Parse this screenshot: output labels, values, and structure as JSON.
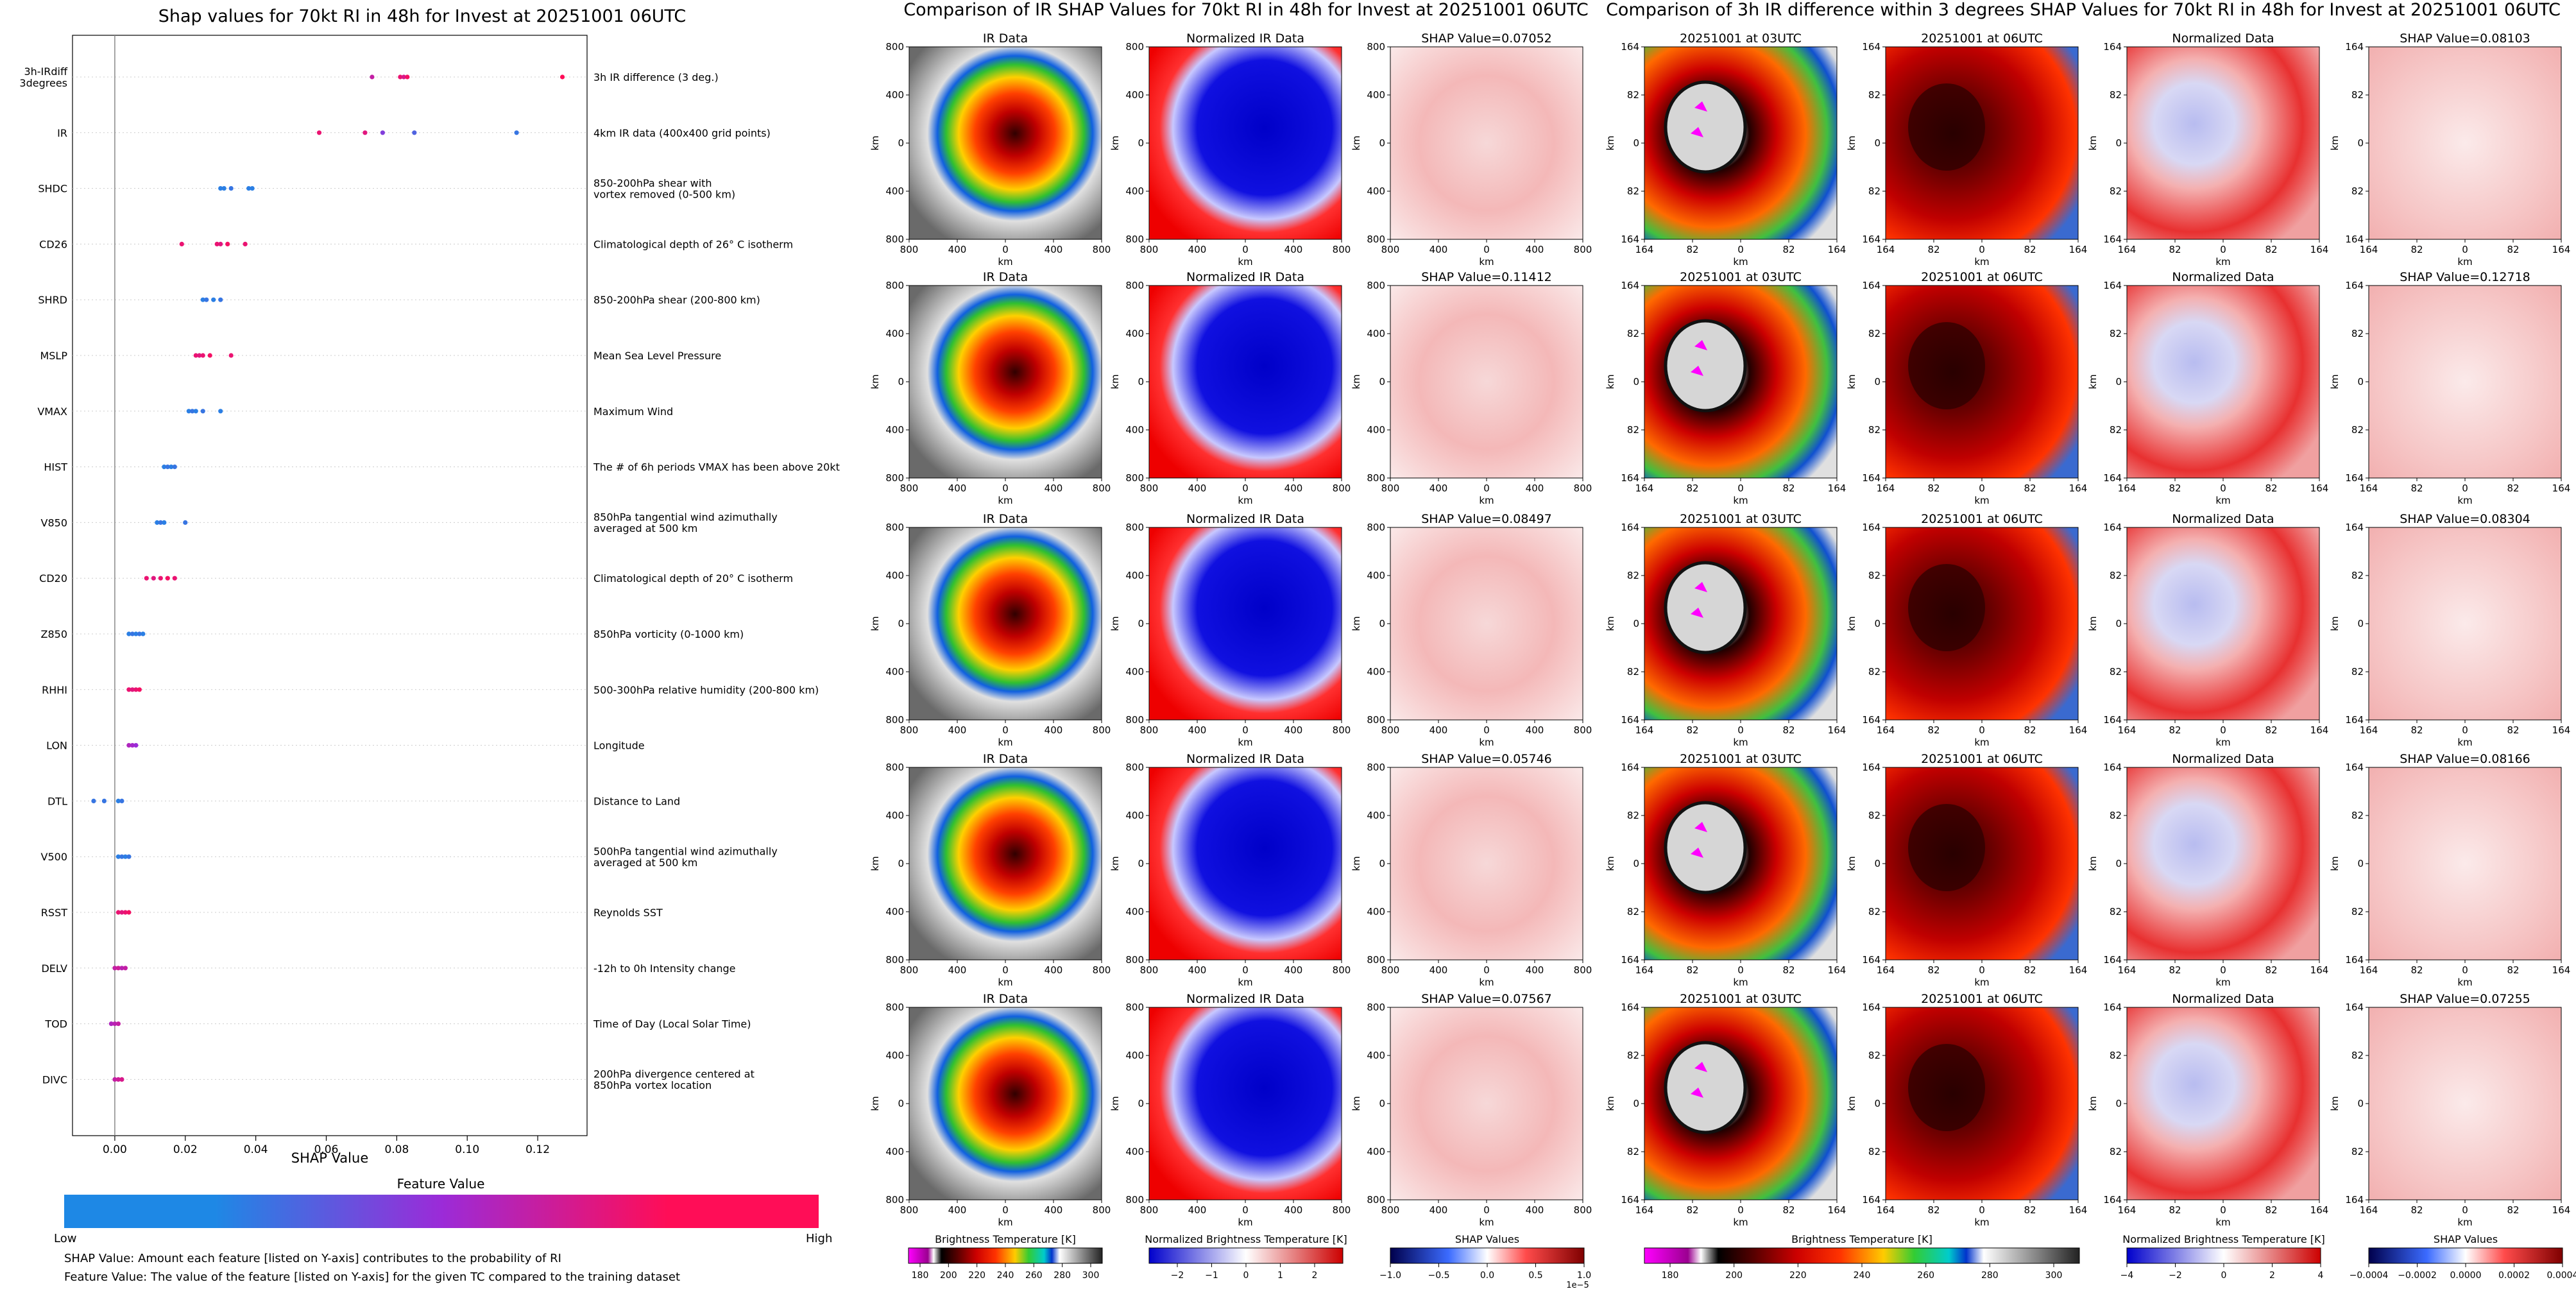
{
  "summary_panel": {
    "title": "Shap values for 70kt RI in 48h for Invest at 20251001 06UTC",
    "xlabel": "SHAP Value",
    "xticks": [
      "0.00",
      "0.02",
      "0.04",
      "0.06",
      "0.08",
      "0.10",
      "0.12"
    ],
    "colorbar_title": "Feature Value",
    "colorbar_low": "Low",
    "colorbar_high": "High",
    "note_shap": "SHAP Value: Amount each feature [listed on Y-axis] contributes to the probability of RI",
    "note_feature": "Feature Value: The value of the feature [listed on Y-axis] for the given TC compared to the training dataset"
  },
  "colors": {
    "low": "#1e88e5",
    "high": "#ff0d57",
    "mid": "#9b2bd8"
  },
  "ir_panel": {
    "title": "Comparison of IR SHAP Values for 70kt RI in 48h for Invest at 20251001 06UTC",
    "col_titles": [
      "IR Data",
      "Normalized IR Data"
    ],
    "shap_titles": [
      "SHAP Value=0.07052",
      "SHAP Value=0.11412",
      "SHAP Value=0.08497",
      "SHAP Value=0.05746",
      "SHAP Value=0.07567"
    ],
    "axis_label": "km",
    "ticks": [
      "800",
      "400",
      "0",
      "400",
      "800"
    ],
    "colorbars": [
      {
        "label": "Brightness Temperature [K]",
        "ticks": [
          "180",
          "200",
          "220",
          "240",
          "260",
          "280",
          "300"
        ]
      },
      {
        "label": "Normalized Brightness Temperature [K]",
        "ticks": [
          "−2",
          "−1",
          "0",
          "1",
          "2"
        ]
      },
      {
        "label": "SHAP Values",
        "ticks": [
          "−1.0",
          "−0.5",
          "0.0",
          "0.5",
          "1.0"
        ],
        "exponent": "1e−5"
      }
    ]
  },
  "diff_panel": {
    "title": "Comparison of 3h IR difference within 3 degrees SHAP Values for 70kt RI in 48h for Invest at 20251001 06UTC",
    "col_titles": [
      "20251001 at 03UTC",
      "20251001 at 06UTC",
      "Normalized Data"
    ],
    "shap_titles": [
      "SHAP Value=0.08103",
      "SHAP Value=0.12718",
      "SHAP Value=0.08304",
      "SHAP Value=0.08166",
      "SHAP Value=0.07255"
    ],
    "axis_label": "km",
    "ticks": [
      "164",
      "82",
      "0",
      "82",
      "164"
    ],
    "colorbars": [
      {
        "label": "Brightness Temperature [K]",
        "ticks": [
          "180",
          "200",
          "220",
          "240",
          "260",
          "280",
          "300"
        ]
      },
      {
        "label": "Normalized Brightness Temperature [K]",
        "ticks": [
          "−4",
          "−2",
          "0",
          "2",
          "4"
        ]
      },
      {
        "label": "SHAP Values",
        "ticks": [
          "−0.0004",
          "−0.0002",
          "0.0000",
          "0.0002",
          "0.0004"
        ]
      }
    ]
  },
  "chart_data": [
    {
      "type": "scatter",
      "title": "Shap values for 70kt RI in 48h for Invest at 20251001 06UTC",
      "xlabel": "SHAP Value",
      "xlim": [
        -0.012,
        0.134
      ],
      "grid": false,
      "features": [
        {
          "name": "3h-IRdiff\n3degrees",
          "desc": "3h IR difference (3 deg.)",
          "points": [
            [
              0.073,
              0.7
            ],
            [
              0.081,
              0.9
            ],
            [
              0.082,
              0.8
            ],
            [
              0.083,
              0.95
            ],
            [
              0.127,
              1.0
            ]
          ]
        },
        {
          "name": "IR",
          "desc": "4km IR data (400x400 grid points)",
          "points": [
            [
              0.058,
              0.9
            ],
            [
              0.071,
              0.85
            ],
            [
              0.076,
              0.4
            ],
            [
              0.085,
              0.2
            ],
            [
              0.114,
              0.1
            ]
          ]
        },
        {
          "name": "SHDC",
          "desc": "850-200hPa shear with\nvortex removed (0-500 km)",
          "points": [
            [
              0.03,
              0.05
            ],
            [
              0.031,
              0.05
            ],
            [
              0.033,
              0.1
            ],
            [
              0.038,
              0.05
            ],
            [
              0.039,
              0.05
            ]
          ]
        },
        {
          "name": "CD26",
          "desc": "Climatological depth of 26° C isotherm",
          "points": [
            [
              0.019,
              0.9
            ],
            [
              0.029,
              0.9
            ],
            [
              0.03,
              0.85
            ],
            [
              0.032,
              0.95
            ],
            [
              0.037,
              0.9
            ]
          ]
        },
        {
          "name": "SHRD",
          "desc": "850-200hPa shear (200-800 km)",
          "points": [
            [
              0.025,
              0.05
            ],
            [
              0.026,
              0.1
            ],
            [
              0.028,
              0.05
            ],
            [
              0.03,
              0.1
            ]
          ]
        },
        {
          "name": "MSLP",
          "desc": "Mean Sea Level Pressure",
          "points": [
            [
              0.023,
              0.9
            ],
            [
              0.024,
              0.85
            ],
            [
              0.025,
              0.9
            ],
            [
              0.027,
              0.95
            ],
            [
              0.033,
              0.9
            ]
          ]
        },
        {
          "name": "VMAX",
          "desc": "Maximum Wind",
          "points": [
            [
              0.021,
              0.05
            ],
            [
              0.022,
              0.1
            ],
            [
              0.023,
              0.05
            ],
            [
              0.025,
              0.1
            ],
            [
              0.03,
              0.05
            ]
          ]
        },
        {
          "name": "HIST",
          "desc": "The # of 6h periods VMAX has been above 20kt",
          "points": [
            [
              0.014,
              0.05
            ],
            [
              0.015,
              0.1
            ],
            [
              0.016,
              0.05
            ],
            [
              0.017,
              0.1
            ]
          ]
        },
        {
          "name": "V850",
          "desc": "850hPa tangential wind azimuthally\naveraged at 500 km",
          "points": [
            [
              0.012,
              0.05
            ],
            [
              0.013,
              0.1
            ],
            [
              0.014,
              0.05
            ],
            [
              0.02,
              0.1
            ]
          ]
        },
        {
          "name": "CD20",
          "desc": "Climatological depth of 20° C isotherm",
          "points": [
            [
              0.009,
              0.9
            ],
            [
              0.011,
              0.85
            ],
            [
              0.013,
              0.9
            ],
            [
              0.015,
              0.95
            ],
            [
              0.017,
              0.9
            ]
          ]
        },
        {
          "name": "Z850",
          "desc": "850hPa vorticity (0-1000 km)",
          "points": [
            [
              0.004,
              0.05
            ],
            [
              0.005,
              0.1
            ],
            [
              0.006,
              0.05
            ],
            [
              0.007,
              0.1
            ],
            [
              0.008,
              0.05
            ]
          ]
        },
        {
          "name": "RHHI",
          "desc": "500-300hPa relative humidity (200-800 km)",
          "points": [
            [
              0.004,
              0.9
            ],
            [
              0.005,
              0.85
            ],
            [
              0.006,
              0.9
            ],
            [
              0.007,
              0.95
            ]
          ]
        },
        {
          "name": "LON",
          "desc": "Longitude",
          "points": [
            [
              0.004,
              0.6
            ],
            [
              0.005,
              0.55
            ],
            [
              0.006,
              0.5
            ]
          ]
        },
        {
          "name": "DTL",
          "desc": "Distance to Land",
          "points": [
            [
              -0.006,
              0.1
            ],
            [
              -0.003,
              0.1
            ],
            [
              0.001,
              0.05
            ],
            [
              0.002,
              0.1
            ]
          ]
        },
        {
          "name": "V500",
          "desc": "500hPa tangential wind azimuthally\naveraged at 500 km",
          "points": [
            [
              0.001,
              0.05
            ],
            [
              0.002,
              0.1
            ],
            [
              0.003,
              0.05
            ],
            [
              0.004,
              0.1
            ]
          ]
        },
        {
          "name": "RSST",
          "desc": "Reynolds SST",
          "points": [
            [
              0.001,
              0.9
            ],
            [
              0.002,
              0.85
            ],
            [
              0.003,
              0.9
            ],
            [
              0.004,
              0.95
            ]
          ]
        },
        {
          "name": "DELV",
          "desc": "-12h to 0h Intensity change",
          "points": [
            [
              0.0,
              0.7
            ],
            [
              0.001,
              0.75
            ],
            [
              0.002,
              0.65
            ],
            [
              0.003,
              0.7
            ]
          ]
        },
        {
          "name": "TOD",
          "desc": "Time of Day (Local Solar Time)",
          "points": [
            [
              -0.001,
              0.6
            ],
            [
              0.0,
              0.65
            ],
            [
              0.001,
              0.7
            ]
          ]
        },
        {
          "name": "DIVC",
          "desc": "200hPa divergence centered at\n850hPa vortex location",
          "points": [
            [
              0.0,
              0.7
            ],
            [
              0.001,
              0.75
            ],
            [
              0.002,
              0.8
            ]
          ]
        }
      ]
    }
  ]
}
